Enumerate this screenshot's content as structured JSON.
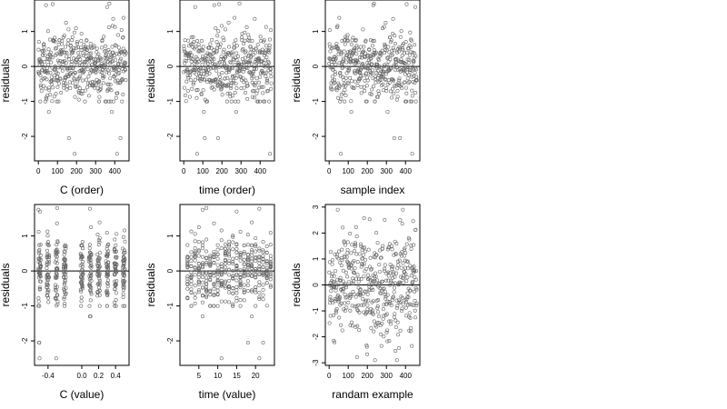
{
  "colors": {
    "points": "#666666",
    "frame": "#000000",
    "background": "#ffffff"
  },
  "chart_data": [
    {
      "type": "scatter",
      "xlabel": "C (order)",
      "ylabel": "residuals",
      "xlim": [
        -20,
        475
      ],
      "ylim": [
        -2.7,
        1.9
      ],
      "xticks": [
        0,
        100,
        200,
        300,
        400
      ],
      "yticks": [
        -2,
        -1,
        0,
        1
      ],
      "hline": 0,
      "points": []
    },
    {
      "type": "scatter",
      "xlabel": "time (order)",
      "ylabel": "residuals",
      "xlim": [
        -20,
        475
      ],
      "ylim": [
        -2.7,
        1.9
      ],
      "xticks": [
        0,
        100,
        200,
        300,
        400
      ],
      "yticks": [
        -2,
        -1,
        0,
        1
      ],
      "hline": 0,
      "points": []
    },
    {
      "type": "scatter",
      "xlabel": "sample index",
      "ylabel": "residuals",
      "xlim": [
        -20,
        475
      ],
      "ylim": [
        -2.7,
        1.9
      ],
      "xticks": [
        0,
        100,
        200,
        300,
        400
      ],
      "yticks": [
        -2,
        -1,
        0,
        1
      ],
      "hline": 0,
      "points": []
    },
    {
      "type": "scatter",
      "xlabel": "C (value)",
      "ylabel": "residuals",
      "xlim": [
        -0.56,
        0.56
      ],
      "ylim": [
        -2.7,
        1.9
      ],
      "xticks": [
        -0.4,
        0.0,
        0.2,
        0.4
      ],
      "yticks": [
        -2,
        -1,
        0,
        1
      ],
      "hline": 0,
      "points": []
    },
    {
      "type": "scatter",
      "xlabel": "time (value)",
      "ylabel": "residuals",
      "xlim": [
        0,
        25
      ],
      "ylim": [
        -2.7,
        1.9
      ],
      "xticks": [
        5,
        10,
        15,
        20
      ],
      "yticks": [
        -2,
        -1,
        0,
        1
      ],
      "hline": 0,
      "points": []
    },
    {
      "type": "scatter",
      "xlabel": "randam example",
      "ylabel": "residuals",
      "xlim": [
        -20,
        475
      ],
      "ylim": [
        -3.1,
        3.1
      ],
      "xticks": [
        0,
        100,
        200,
        300,
        400
      ],
      "yticks": [
        -3,
        -2,
        -1,
        0,
        1,
        2,
        3
      ],
      "hline": 0,
      "points": []
    }
  ]
}
